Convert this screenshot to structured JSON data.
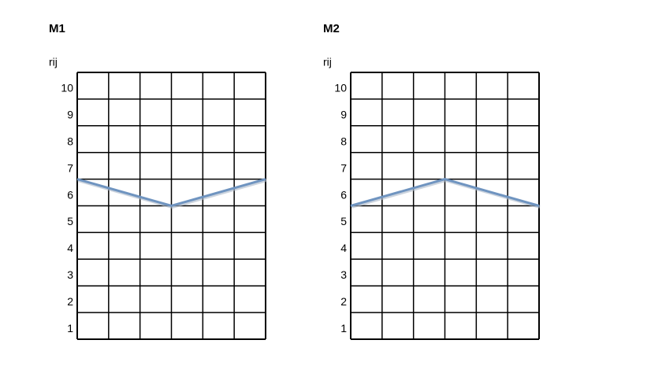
{
  "chart_data": [
    {
      "type": "line",
      "title": "M1",
      "y_label": "rij",
      "x": [
        0,
        3,
        6
      ],
      "xlim": [
        0,
        6
      ],
      "ylim": [
        0.5,
        10.5
      ],
      "yticks": [
        1,
        2,
        3,
        4,
        5,
        6,
        7,
        8,
        9,
        10
      ],
      "series": [
        {
          "color": "#6f94c0",
          "values": [
            6.5,
            5.5,
            6.5
          ]
        }
      ]
    },
    {
      "type": "line",
      "title": "M2",
      "y_label": "rij",
      "x": [
        0,
        3,
        6
      ],
      "xlim": [
        0,
        6
      ],
      "ylim": [
        0.5,
        10.5
      ],
      "yticks": [
        1,
        2,
        3,
        4,
        5,
        6,
        7,
        8,
        9,
        10
      ],
      "series": [
        {
          "color": "#6f94c0",
          "values": [
            5.5,
            6.5,
            5.5
          ]
        }
      ]
    }
  ]
}
